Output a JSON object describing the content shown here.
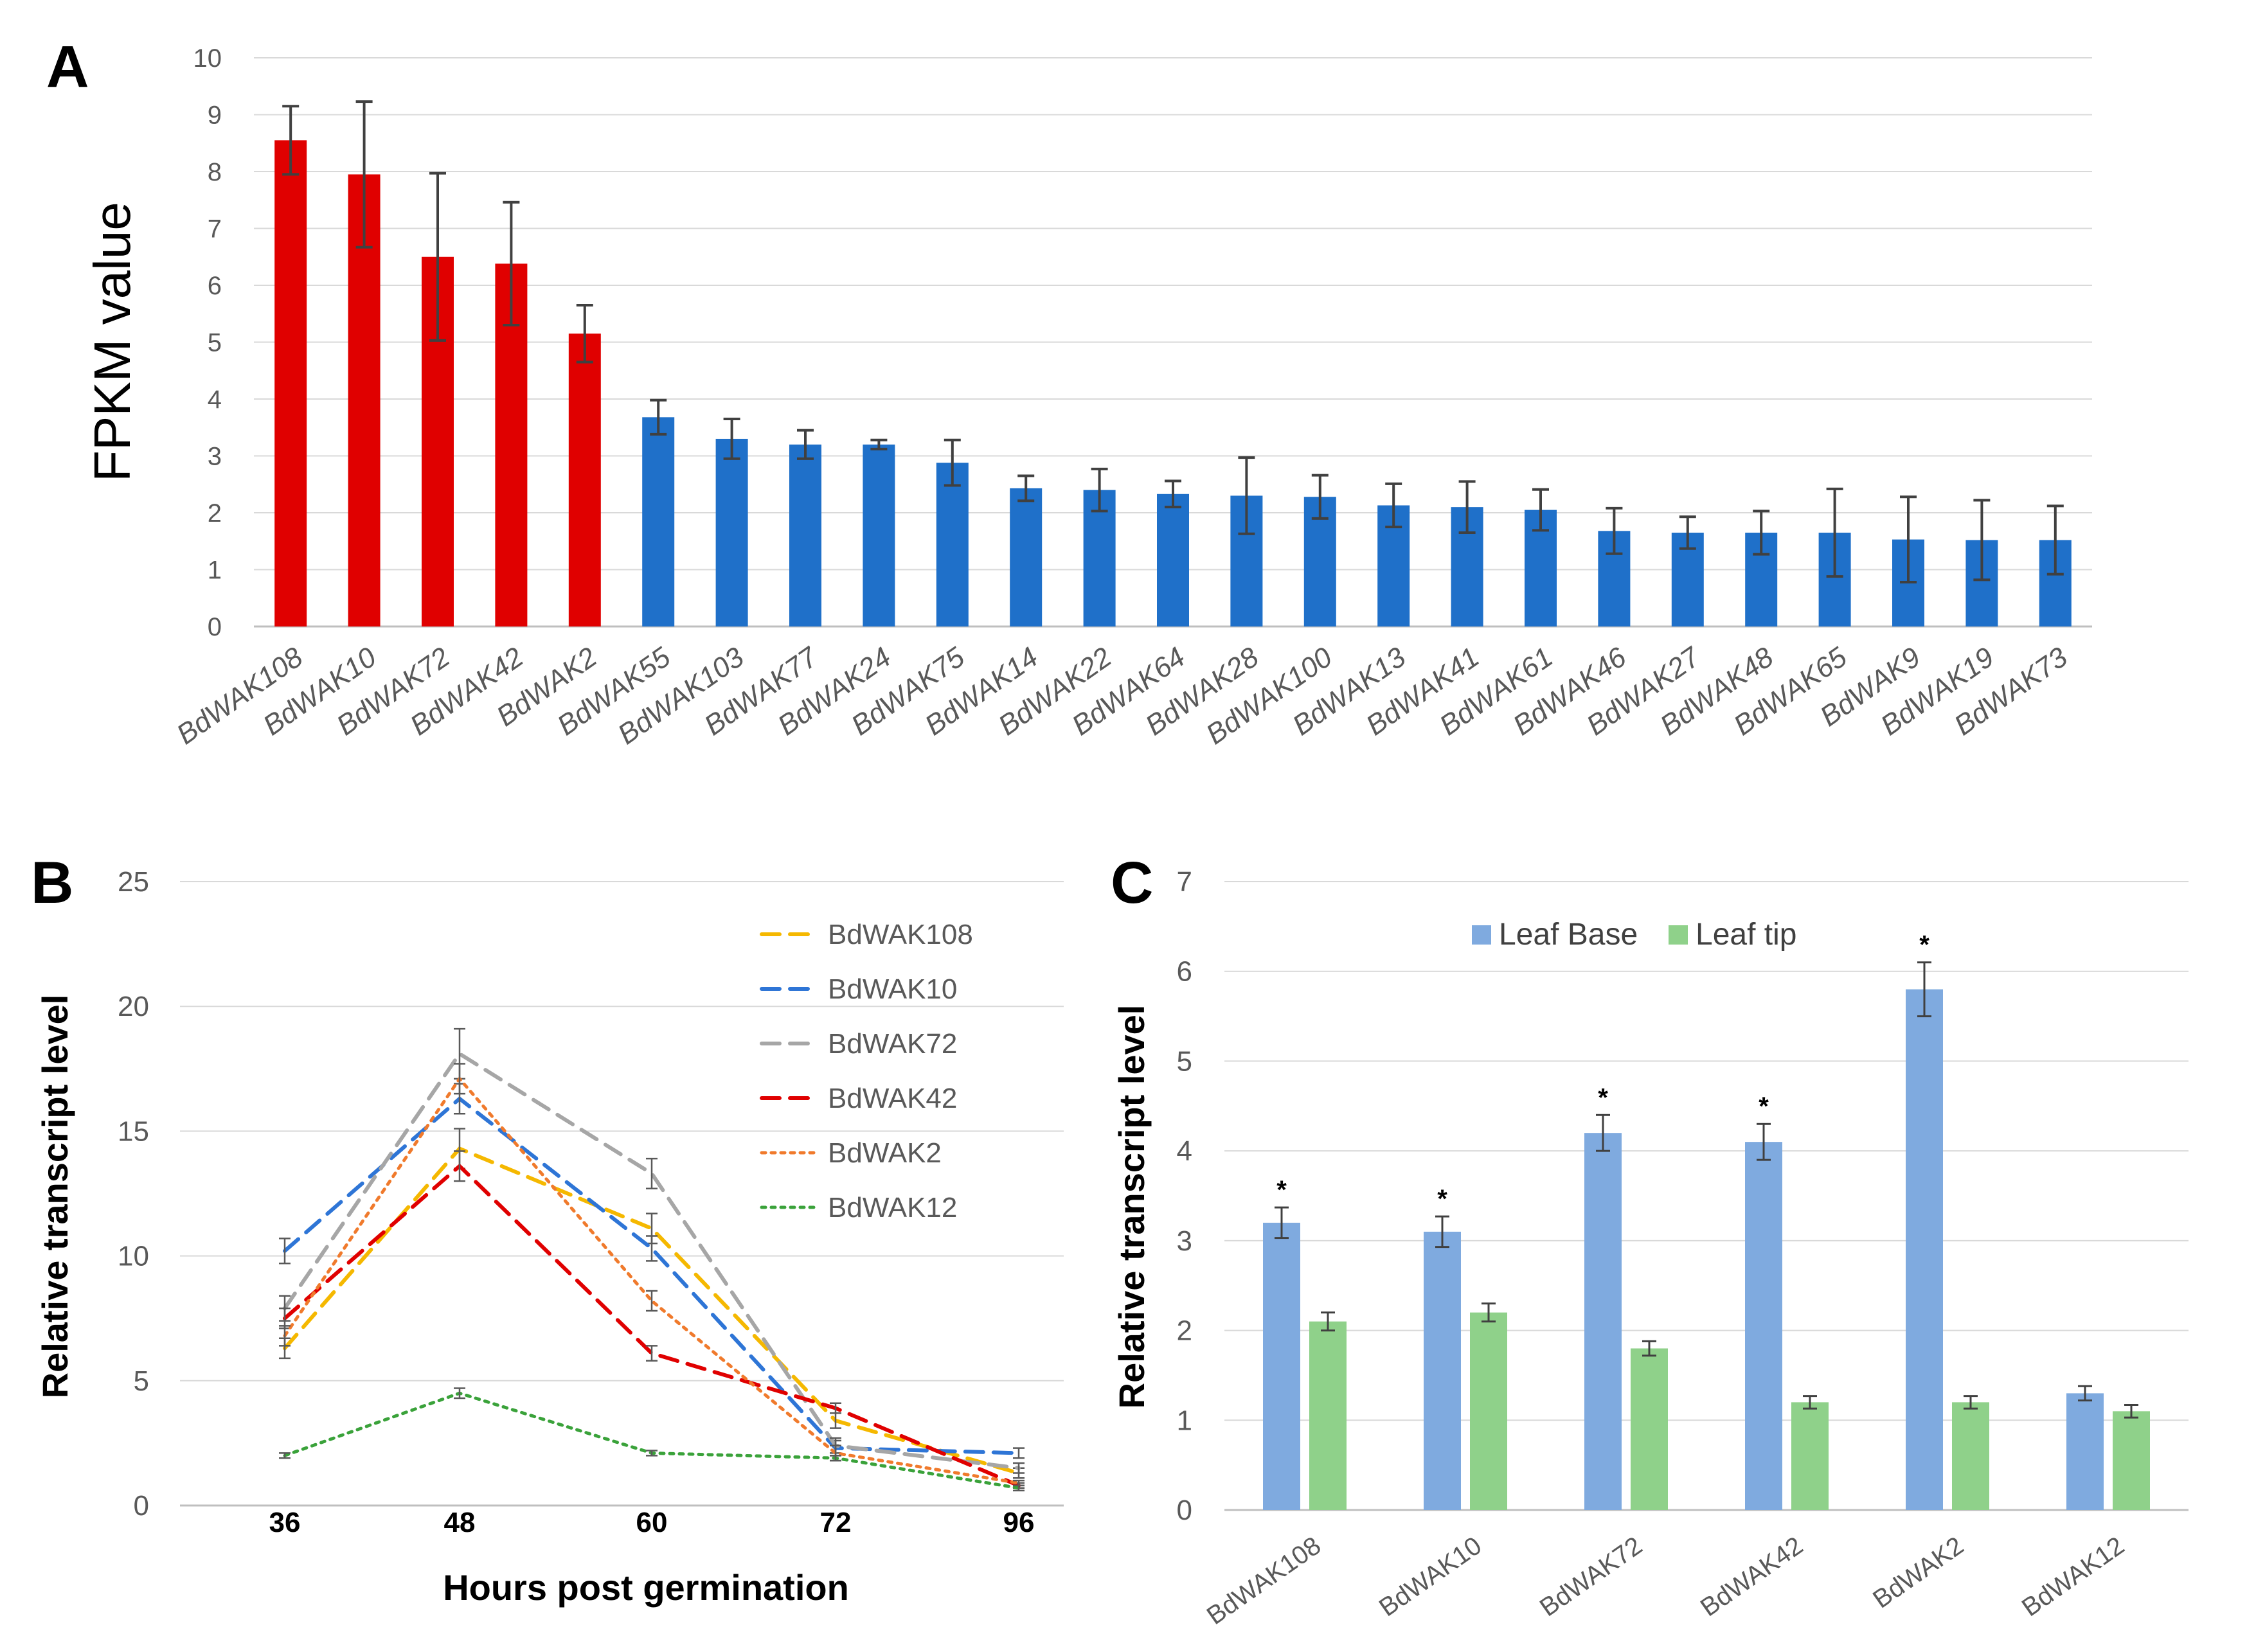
{
  "chart_data": [
    {
      "panel_label": "A",
      "type": "bar",
      "title": "",
      "ylabel": "FPKM value",
      "xlabel": "",
      "ylim": [
        0,
        10
      ],
      "yticks": [
        "0",
        "1",
        "2",
        "3",
        "4",
        "5",
        "6",
        "7",
        "8",
        "9",
        "10"
      ],
      "grid": true,
      "categories": [
        "BdWAK108",
        "BdWAK10",
        "BdWAK72",
        "BdWAK42",
        "BdWAK2",
        "BdWAK55",
        "BdWAK103",
        "BdWAK77",
        "BdWAK24",
        "BdWAK75",
        "BdWAK14",
        "BdWAK22",
        "BdWAK64",
        "BdWAK28",
        "BdWAK100",
        "BdWAK13",
        "BdWAK41",
        "BdWAK61",
        "BdWAK46",
        "BdWAK27",
        "BdWAK48",
        "BdWAK65",
        "BdWAK9",
        "BdWAK19",
        "BdWAK73"
      ],
      "values": [
        8.55,
        7.95,
        6.5,
        6.38,
        5.15,
        3.68,
        3.3,
        3.2,
        3.2,
        2.88,
        2.43,
        2.4,
        2.33,
        2.3,
        2.28,
        2.13,
        2.1,
        2.05,
        1.68,
        1.65,
        1.65,
        1.65,
        1.53,
        1.52,
        1.52
      ],
      "errors": [
        0.6,
        1.28,
        1.47,
        1.08,
        0.5,
        0.3,
        0.35,
        0.25,
        0.08,
        0.4,
        0.22,
        0.37,
        0.23,
        0.67,
        0.38,
        0.38,
        0.45,
        0.36,
        0.4,
        0.28,
        0.38,
        0.77,
        0.75,
        0.7,
        0.6
      ],
      "bar_colors": [
        "#e00000",
        "#e00000",
        "#e00000",
        "#e00000",
        "#e00000",
        "#1f70c9",
        "#1f70c9",
        "#1f70c9",
        "#1f70c9",
        "#1f70c9",
        "#1f70c9",
        "#1f70c9",
        "#1f70c9",
        "#1f70c9",
        "#1f70c9",
        "#1f70c9",
        "#1f70c9",
        "#1f70c9",
        "#1f70c9",
        "#1f70c9",
        "#1f70c9",
        "#1f70c9",
        "#1f70c9",
        "#1f70c9",
        "#1f70c9"
      ]
    },
    {
      "panel_label": "B",
      "type": "line",
      "title": "",
      "xlabel": "Hours post germination",
      "ylabel": "Relative transcript level",
      "x": [
        "36",
        "48",
        "60",
        "72",
        "96"
      ],
      "ylim": [
        0,
        25
      ],
      "yticks": [
        "0",
        "5",
        "10",
        "15",
        "20",
        "25"
      ],
      "grid": true,
      "legend_position": "top-right",
      "series": [
        {
          "name": "BdWAK108",
          "color": "#f5b800",
          "dash": "long-dash",
          "values": [
            6.3,
            14.3,
            11.1,
            3.4,
            1.3
          ],
          "errors": [
            0.4,
            0.8,
            0.6,
            0.3,
            0.2
          ]
        },
        {
          "name": "BdWAK10",
          "color": "#2e75d6",
          "dash": "long-dash",
          "values": [
            10.2,
            16.3,
            10.3,
            2.3,
            2.1
          ],
          "errors": [
            0.5,
            0.6,
            0.5,
            0.3,
            0.2
          ]
        },
        {
          "name": "BdWAK72",
          "color": "#a6a6a6",
          "dash": "long-dash",
          "values": [
            7.9,
            18.1,
            13.3,
            2.4,
            1.5
          ],
          "errors": [
            0.5,
            1.0,
            0.6,
            0.3,
            0.2
          ]
        },
        {
          "name": "BdWAK42",
          "color": "#e00000",
          "dash": "long-dash",
          "values": [
            7.5,
            13.6,
            6.1,
            3.9,
            0.8
          ],
          "errors": [
            0.4,
            0.6,
            0.3,
            0.2,
            0.1
          ]
        },
        {
          "name": "BdWAK2",
          "color": "#f07a2c",
          "dash": "dot",
          "values": [
            6.8,
            17.1,
            8.2,
            2.1,
            0.9
          ],
          "errors": [
            0.4,
            0.6,
            0.4,
            0.3,
            0.1
          ]
        },
        {
          "name": "BdWAK12",
          "color": "#3aa23a",
          "dash": "dot",
          "values": [
            2.0,
            4.5,
            2.1,
            1.9,
            0.7
          ],
          "errors": [
            0.1,
            0.2,
            0.1,
            0.1,
            0.1
          ]
        }
      ]
    },
    {
      "panel_label": "C",
      "type": "bar",
      "title": "",
      "xlabel": "",
      "ylabel": "Relative transcript level",
      "ylim": [
        0,
        7
      ],
      "yticks": [
        "0",
        "1",
        "2",
        "3",
        "4",
        "5",
        "6",
        "7"
      ],
      "grid": true,
      "legend_position": "top-center",
      "categories": [
        "BdWAK108",
        "BdWAK10",
        "BdWAK72",
        "BdWAK42",
        "BdWAK2",
        "BdWAK12"
      ],
      "series": [
        {
          "name": "Leaf Base",
          "color": "#7faadf",
          "values": [
            3.2,
            3.1,
            4.2,
            4.1,
            5.8,
            1.3
          ],
          "errors": [
            0.17,
            0.17,
            0.2,
            0.2,
            0.3,
            0.08
          ],
          "significant": [
            "*",
            "*",
            "*",
            "*",
            "*",
            ""
          ]
        },
        {
          "name": "Leaf tip",
          "color": "#8fd18a",
          "values": [
            2.1,
            2.2,
            1.8,
            1.2,
            1.2,
            1.1
          ],
          "errors": [
            0.1,
            0.1,
            0.08,
            0.07,
            0.07,
            0.07
          ],
          "significant": [
            "",
            "",
            "",
            "",
            "",
            ""
          ]
        }
      ]
    }
  ]
}
